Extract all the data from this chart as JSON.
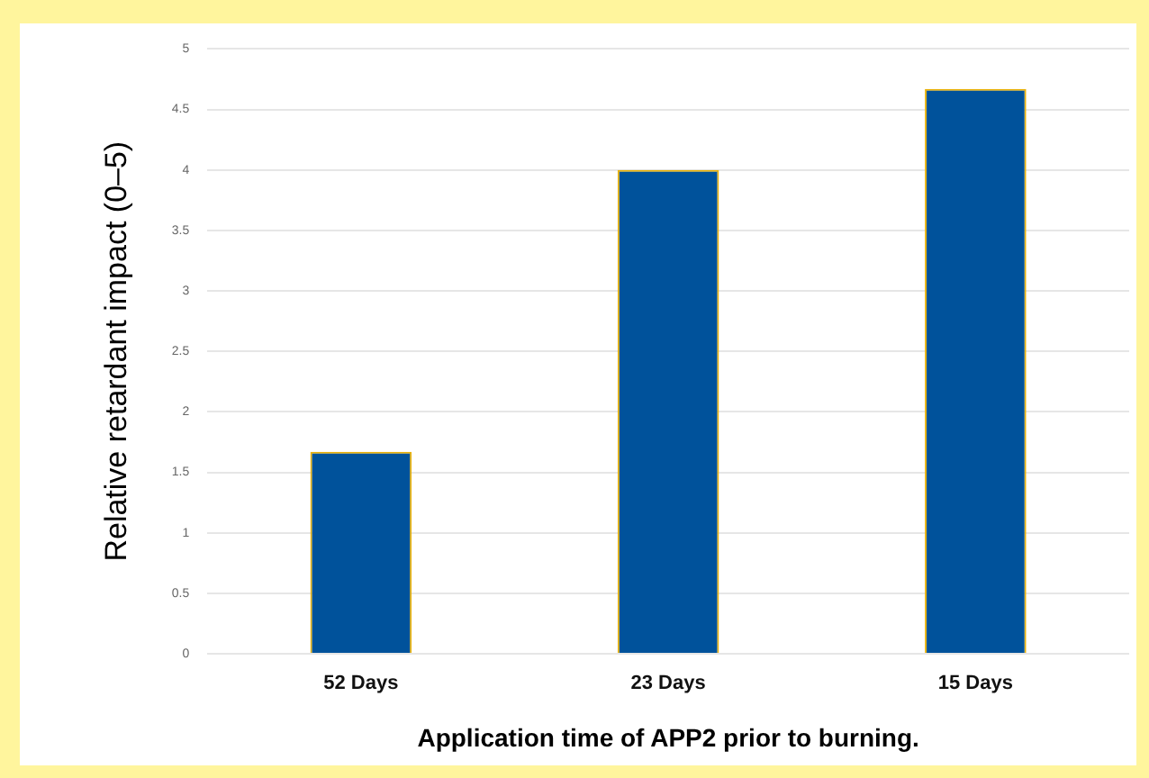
{
  "chart_data": {
    "type": "bar",
    "categories": [
      "52 Days",
      "23 Days",
      "15 Days"
    ],
    "values": [
      1.67,
      4.0,
      4.67
    ],
    "color": "#00529b",
    "xlabel": "Application time of APP2 prior to burning.",
    "ylabel": "Relative retardant impact (0–5)",
    "ylim": [
      0,
      5
    ],
    "yticks": [
      0,
      0.5,
      1,
      1.5,
      2,
      2.5,
      3,
      3.5,
      4,
      4.5,
      5
    ],
    "grid": "y",
    "legend": false
  }
}
